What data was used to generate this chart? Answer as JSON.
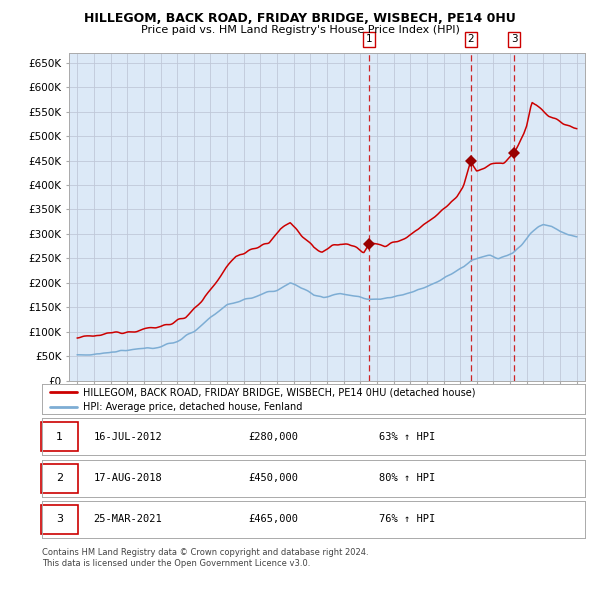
{
  "title": "HILLEGOM, BACK ROAD, FRIDAY BRIDGE, WISBECH, PE14 0HU",
  "subtitle": "Price paid vs. HM Land Registry's House Price Index (HPI)",
  "background_color": "#ffffff",
  "plot_bg_color": "#dce9f7",
  "red_line_color": "#cc0000",
  "blue_line_color": "#7dadd4",
  "grid_color": "#c0c8d8",
  "ylim": [
    0,
    670000
  ],
  "yticks": [
    0,
    50000,
    100000,
    150000,
    200000,
    250000,
    300000,
    350000,
    400000,
    450000,
    500000,
    550000,
    600000,
    650000
  ],
  "ytick_labels": [
    "£0",
    "£50K",
    "£100K",
    "£150K",
    "£200K",
    "£250K",
    "£300K",
    "£350K",
    "£400K",
    "£450K",
    "£500K",
    "£550K",
    "£600K",
    "£650K"
  ],
  "xlim_start": 1994.5,
  "xlim_end": 2025.5,
  "xticks": [
    1995,
    1996,
    1997,
    1998,
    1999,
    2000,
    2001,
    2002,
    2003,
    2004,
    2005,
    2006,
    2007,
    2008,
    2009,
    2010,
    2011,
    2012,
    2013,
    2014,
    2015,
    2016,
    2017,
    2018,
    2019,
    2020,
    2021,
    2022,
    2023,
    2024,
    2025
  ],
  "legend_red": "HILLEGOM, BACK ROAD, FRIDAY BRIDGE, WISBECH, PE14 0HU (detached house)",
  "legend_blue": "HPI: Average price, detached house, Fenland",
  "sale1_date": "16-JUL-2012",
  "sale1_price": 280000,
  "sale1_hpi": "63% ↑ HPI",
  "sale2_date": "17-AUG-2018",
  "sale2_price": 450000,
  "sale2_hpi": "80% ↑ HPI",
  "sale3_date": "25-MAR-2021",
  "sale3_price": 465000,
  "sale3_hpi": "76% ↑ HPI",
  "footnote1": "Contains HM Land Registry data © Crown copyright and database right 2024.",
  "footnote2": "This data is licensed under the Open Government Licence v3.0."
}
